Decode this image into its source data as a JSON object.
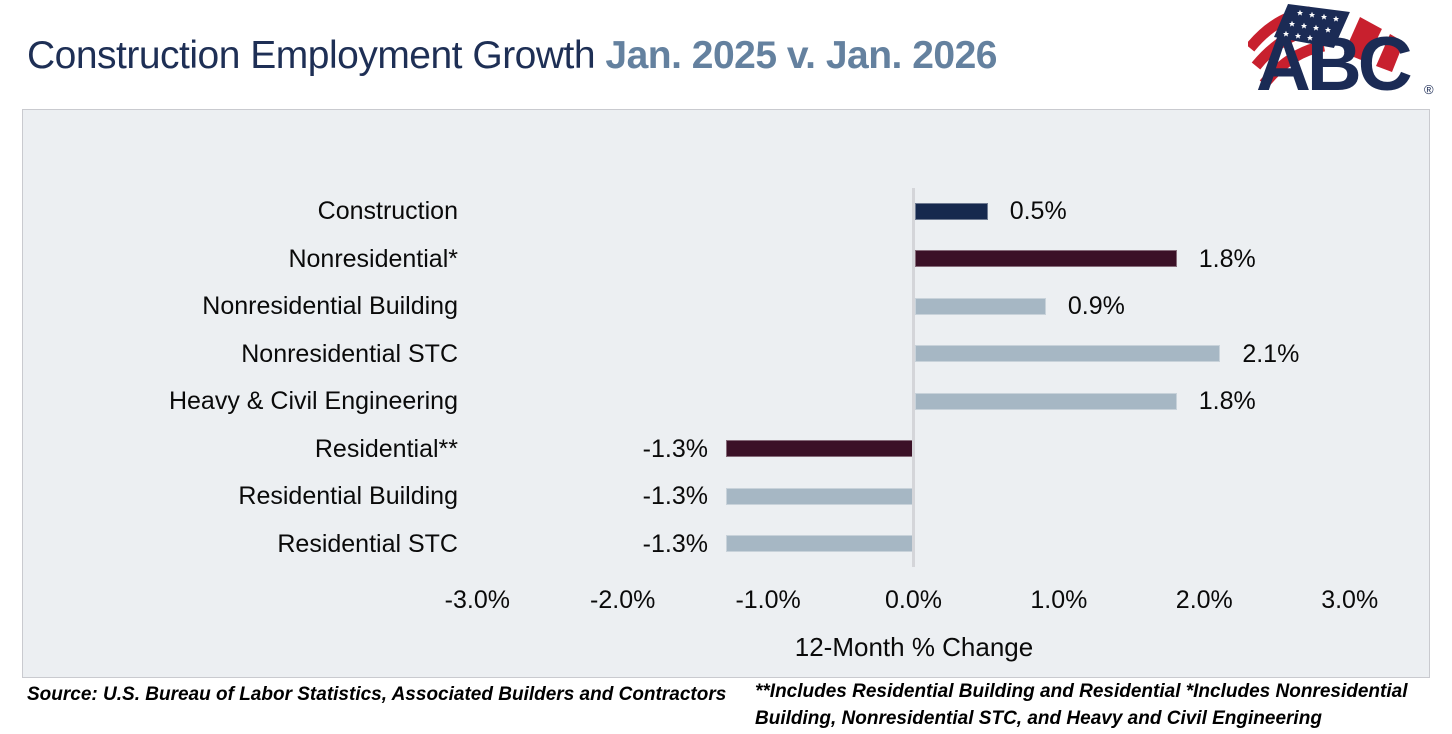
{
  "header": {
    "title": "Construction Employment Growth",
    "subtitle": "Jan. 2025 v. Jan. 2026",
    "logo_text": "ABC",
    "logo_reg": "®"
  },
  "chart_data": {
    "type": "bar",
    "orientation": "horizontal",
    "title": "Construction Employment Growth Jan. 2025 v. Jan. 2026",
    "categories": [
      "Construction",
      "Nonresidential*",
      "Nonresidential Building",
      "Nonresidential STC",
      "Heavy & Civil Engineering",
      "Residential**",
      "Residential Building",
      "Residential STC"
    ],
    "values": [
      0.5,
      1.8,
      0.9,
      2.1,
      1.8,
      -1.3,
      -1.3,
      -1.3
    ],
    "value_labels": [
      "0.5%",
      "1.8%",
      "0.9%",
      "2.1%",
      "1.8%",
      "-1.3%",
      "-1.3%",
      "-1.3%"
    ],
    "bar_colors": [
      "#16294e",
      "#3b1127",
      "#a6b7c4",
      "#a6b7c4",
      "#a6b7c4",
      "#3b1127",
      "#a6b7c4",
      "#a6b7c4"
    ],
    "xlabel": "12-Month % Change",
    "x_ticks": [
      "-3.0%",
      "-2.0%",
      "-1.0%",
      "0.0%",
      "1.0%",
      "2.0%",
      "3.0%"
    ],
    "x_tick_values": [
      -3,
      -2,
      -1,
      0,
      1,
      2,
      3
    ],
    "xlim": [
      -3.5,
      3.5
    ],
    "grid": false,
    "legend": false,
    "panel_bg": "#eceff2",
    "zero_line_color": "#d4d5d9"
  },
  "footer": {
    "source": "Source: U.S. Bureau of Labor Statistics, Associated Builders and Contractors",
    "note_lines": [
      "**Includes Residential Building and Residential *Includes Nonresidential",
      "Building, Nonresidential STC, and Heavy and Civil Engineering"
    ]
  },
  "colors": {
    "title_navy": "#1e2f55",
    "subtitle_slate": "#64819f",
    "flag_red": "#c8202e",
    "logo_navy": "#1b2b55"
  }
}
